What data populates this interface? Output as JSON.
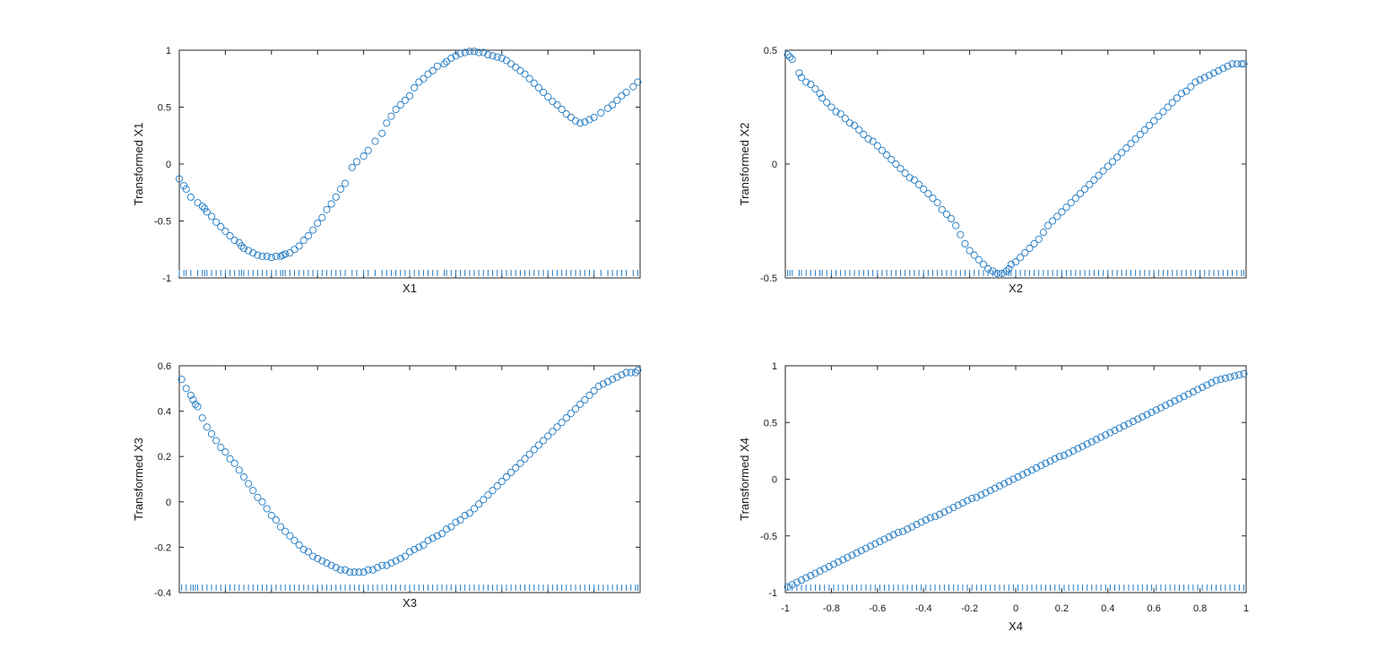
{
  "colors": {
    "marker": "#1f7ac4",
    "rug": "#1f7ac4",
    "axis": "#262626",
    "background": "#ffffff"
  },
  "chart_data": [
    {
      "type": "scatter",
      "title": "",
      "xlabel": "X1",
      "ylabel": "Transformed X1",
      "xlim": [
        -1,
        1
      ],
      "ylim": [
        -1,
        1
      ],
      "yticks": [
        -1,
        -0.5,
        0,
        0.5,
        1
      ],
      "ytick_labels": [
        "-1",
        "-0.5",
        "0",
        "0.5",
        "1"
      ],
      "xticks": [
        -1,
        -0.8,
        -0.6,
        -0.4,
        -0.2,
        0,
        0.2,
        0.4,
        0.6,
        0.8,
        1
      ],
      "xtick_labels": [],
      "grid": false,
      "marker": "open-circle",
      "rug": true,
      "series": [
        {
          "x": [
            -1.0,
            -0.98,
            -0.97,
            -0.95,
            -0.92,
            -0.9,
            -0.89,
            -0.88,
            -0.86,
            -0.84,
            -0.82,
            -0.8,
            -0.78,
            -0.76,
            -0.74,
            -0.73,
            -0.72,
            -0.7,
            -0.68,
            -0.66,
            -0.64,
            -0.62,
            -0.6,
            -0.58,
            -0.56,
            -0.55,
            -0.54,
            -0.52,
            -0.5,
            -0.48,
            -0.46,
            -0.44,
            -0.42,
            -0.4,
            -0.38,
            -0.36,
            -0.34,
            -0.32,
            -0.3,
            -0.28,
            -0.25,
            -0.23,
            -0.2,
            -0.18,
            -0.15,
            -0.12,
            -0.1,
            -0.08,
            -0.06,
            -0.04,
            -0.02,
            0.0,
            0.02,
            0.04,
            0.06,
            0.08,
            0.1,
            0.12,
            0.15,
            0.16,
            0.18,
            0.2,
            0.22,
            0.24,
            0.26,
            0.28,
            0.3,
            0.32,
            0.34,
            0.36,
            0.38,
            0.4,
            0.42,
            0.44,
            0.46,
            0.48,
            0.5,
            0.52,
            0.54,
            0.56,
            0.58,
            0.6,
            0.62,
            0.64,
            0.66,
            0.68,
            0.7,
            0.72,
            0.74,
            0.76,
            0.78,
            0.8,
            0.83,
            0.86,
            0.88,
            0.9,
            0.92,
            0.94,
            0.97,
            0.99
          ],
          "y": [
            -0.13,
            -0.19,
            -0.22,
            -0.29,
            -0.34,
            -0.37,
            -0.39,
            -0.42,
            -0.46,
            -0.51,
            -0.55,
            -0.59,
            -0.63,
            -0.67,
            -0.69,
            -0.72,
            -0.74,
            -0.76,
            -0.78,
            -0.8,
            -0.81,
            -0.81,
            -0.82,
            -0.81,
            -0.81,
            -0.8,
            -0.79,
            -0.78,
            -0.75,
            -0.72,
            -0.67,
            -0.63,
            -0.58,
            -0.52,
            -0.47,
            -0.4,
            -0.35,
            -0.29,
            -0.22,
            -0.17,
            -0.03,
            0.02,
            0.07,
            0.12,
            0.2,
            0.27,
            0.36,
            0.42,
            0.48,
            0.52,
            0.56,
            0.6,
            0.67,
            0.72,
            0.75,
            0.79,
            0.82,
            0.86,
            0.88,
            0.9,
            0.93,
            0.95,
            0.97,
            0.98,
            0.99,
            0.99,
            0.98,
            0.98,
            0.96,
            0.95,
            0.94,
            0.93,
            0.91,
            0.88,
            0.85,
            0.82,
            0.79,
            0.75,
            0.71,
            0.67,
            0.63,
            0.59,
            0.55,
            0.52,
            0.48,
            0.44,
            0.41,
            0.38,
            0.36,
            0.37,
            0.39,
            0.41,
            0.45,
            0.49,
            0.52,
            0.56,
            0.6,
            0.63,
            0.68,
            0.72
          ]
        }
      ]
    },
    {
      "type": "scatter",
      "title": "",
      "xlabel": "X2",
      "ylabel": "Transformed X2",
      "xlim": [
        -1,
        1
      ],
      "ylim": [
        -0.5,
        0.5
      ],
      "yticks": [
        -0.5,
        0,
        0.5
      ],
      "ytick_labels": [
        "-0.5",
        "0",
        "0.5"
      ],
      "xticks": [
        -1,
        -0.8,
        -0.6,
        -0.4,
        -0.2,
        0,
        0.2,
        0.4,
        0.6,
        0.8,
        1
      ],
      "xtick_labels": [],
      "grid": false,
      "marker": "open-circle",
      "rug": true,
      "series": [
        {
          "x": [
            -0.99,
            -0.98,
            -0.97,
            -0.94,
            -0.93,
            -0.91,
            -0.89,
            -0.87,
            -0.85,
            -0.84,
            -0.82,
            -0.8,
            -0.78,
            -0.76,
            -0.74,
            -0.72,
            -0.7,
            -0.68,
            -0.66,
            -0.64,
            -0.62,
            -0.6,
            -0.58,
            -0.56,
            -0.54,
            -0.52,
            -0.5,
            -0.48,
            -0.46,
            -0.44,
            -0.42,
            -0.4,
            -0.38,
            -0.36,
            -0.34,
            -0.32,
            -0.3,
            -0.28,
            -0.26,
            -0.24,
            -0.22,
            -0.2,
            -0.18,
            -0.16,
            -0.14,
            -0.12,
            -0.1,
            -0.08,
            -0.06,
            -0.04,
            -0.03,
            -0.02,
            0.0,
            0.02,
            0.04,
            0.06,
            0.08,
            0.1,
            0.12,
            0.14,
            0.16,
            0.18,
            0.2,
            0.22,
            0.24,
            0.26,
            0.28,
            0.3,
            0.32,
            0.34,
            0.36,
            0.38,
            0.4,
            0.42,
            0.44,
            0.46,
            0.48,
            0.5,
            0.52,
            0.54,
            0.56,
            0.58,
            0.6,
            0.62,
            0.64,
            0.66,
            0.68,
            0.7,
            0.72,
            0.74,
            0.76,
            0.78,
            0.8,
            0.82,
            0.84,
            0.86,
            0.88,
            0.9,
            0.92,
            0.94,
            0.96,
            0.98,
            0.99
          ],
          "y": [
            0.48,
            0.47,
            0.46,
            0.4,
            0.38,
            0.36,
            0.35,
            0.33,
            0.31,
            0.29,
            0.27,
            0.25,
            0.23,
            0.22,
            0.2,
            0.18,
            0.17,
            0.15,
            0.13,
            0.11,
            0.1,
            0.08,
            0.06,
            0.04,
            0.02,
            0.0,
            -0.02,
            -0.04,
            -0.06,
            -0.07,
            -0.09,
            -0.11,
            -0.13,
            -0.15,
            -0.17,
            -0.2,
            -0.22,
            -0.24,
            -0.27,
            -0.31,
            -0.35,
            -0.38,
            -0.4,
            -0.42,
            -0.44,
            -0.46,
            -0.47,
            -0.48,
            -0.48,
            -0.47,
            -0.46,
            -0.44,
            -0.43,
            -0.41,
            -0.39,
            -0.37,
            -0.35,
            -0.33,
            -0.3,
            -0.27,
            -0.25,
            -0.23,
            -0.21,
            -0.19,
            -0.17,
            -0.15,
            -0.13,
            -0.11,
            -0.09,
            -0.07,
            -0.05,
            -0.03,
            -0.01,
            0.01,
            0.03,
            0.05,
            0.07,
            0.09,
            0.11,
            0.13,
            0.15,
            0.17,
            0.19,
            0.21,
            0.23,
            0.25,
            0.27,
            0.29,
            0.31,
            0.32,
            0.34,
            0.36,
            0.37,
            0.38,
            0.39,
            0.4,
            0.41,
            0.42,
            0.43,
            0.44,
            0.44,
            0.44,
            0.44
          ]
        }
      ]
    },
    {
      "type": "scatter",
      "title": "",
      "xlabel": "X3",
      "ylabel": "Transformed X3",
      "xlim": [
        -1,
        1
      ],
      "ylim": [
        -0.4,
        0.6
      ],
      "yticks": [
        -0.4,
        -0.2,
        0,
        0.2,
        0.4,
        0.6
      ],
      "ytick_labels": [
        "-0.4",
        "-0.2",
        "0",
        "0.2",
        "0.4",
        "0.6"
      ],
      "xticks": [
        -1,
        -0.8,
        -0.6,
        -0.4,
        -0.2,
        0,
        0.2,
        0.4,
        0.6,
        0.8,
        1
      ],
      "xtick_labels": [],
      "grid": false,
      "marker": "open-circle",
      "rug": true,
      "series": [
        {
          "x": [
            -0.99,
            -0.97,
            -0.95,
            -0.94,
            -0.93,
            -0.92,
            -0.9,
            -0.88,
            -0.86,
            -0.84,
            -0.82,
            -0.8,
            -0.78,
            -0.76,
            -0.74,
            -0.72,
            -0.7,
            -0.68,
            -0.66,
            -0.64,
            -0.62,
            -0.6,
            -0.58,
            -0.56,
            -0.54,
            -0.52,
            -0.5,
            -0.48,
            -0.46,
            -0.44,
            -0.42,
            -0.4,
            -0.38,
            -0.36,
            -0.34,
            -0.32,
            -0.3,
            -0.28,
            -0.26,
            -0.24,
            -0.22,
            -0.2,
            -0.18,
            -0.16,
            -0.14,
            -0.12,
            -0.1,
            -0.08,
            -0.06,
            -0.04,
            -0.02,
            0.0,
            0.02,
            0.04,
            0.06,
            0.08,
            0.1,
            0.12,
            0.14,
            0.16,
            0.18,
            0.2,
            0.22,
            0.24,
            0.26,
            0.28,
            0.3,
            0.32,
            0.34,
            0.36,
            0.38,
            0.4,
            0.42,
            0.44,
            0.46,
            0.48,
            0.5,
            0.52,
            0.54,
            0.56,
            0.58,
            0.6,
            0.62,
            0.64,
            0.66,
            0.68,
            0.7,
            0.72,
            0.74,
            0.76,
            0.78,
            0.8,
            0.82,
            0.84,
            0.86,
            0.88,
            0.9,
            0.92,
            0.94,
            0.96,
            0.98,
            0.99
          ],
          "y": [
            0.54,
            0.5,
            0.47,
            0.45,
            0.43,
            0.42,
            0.37,
            0.33,
            0.3,
            0.27,
            0.24,
            0.22,
            0.19,
            0.17,
            0.14,
            0.11,
            0.08,
            0.05,
            0.02,
            0.0,
            -0.03,
            -0.06,
            -0.08,
            -0.11,
            -0.13,
            -0.15,
            -0.17,
            -0.19,
            -0.21,
            -0.22,
            -0.24,
            -0.25,
            -0.26,
            -0.27,
            -0.28,
            -0.29,
            -0.3,
            -0.3,
            -0.31,
            -0.31,
            -0.31,
            -0.31,
            -0.3,
            -0.3,
            -0.29,
            -0.28,
            -0.28,
            -0.27,
            -0.26,
            -0.25,
            -0.24,
            -0.22,
            -0.21,
            -0.2,
            -0.19,
            -0.17,
            -0.16,
            -0.15,
            -0.14,
            -0.12,
            -0.11,
            -0.09,
            -0.08,
            -0.06,
            -0.05,
            -0.03,
            -0.01,
            0.01,
            0.03,
            0.05,
            0.07,
            0.09,
            0.11,
            0.13,
            0.15,
            0.17,
            0.19,
            0.21,
            0.23,
            0.25,
            0.27,
            0.29,
            0.31,
            0.33,
            0.35,
            0.37,
            0.39,
            0.41,
            0.43,
            0.45,
            0.47,
            0.49,
            0.51,
            0.52,
            0.53,
            0.54,
            0.55,
            0.56,
            0.57,
            0.57,
            0.57,
            0.58
          ]
        }
      ]
    },
    {
      "type": "scatter",
      "title": "",
      "xlabel": "X4",
      "ylabel": "Transformed X4",
      "xlim": [
        -1,
        1
      ],
      "ylim": [
        -1,
        1
      ],
      "yticks": [
        -1,
        -0.5,
        0,
        0.5,
        1
      ],
      "ytick_labels": [
        "-1",
        "-0.5",
        "0",
        "0.5",
        "1"
      ],
      "xticks": [
        -1,
        -0.8,
        -0.6,
        -0.4,
        -0.2,
        0,
        0.2,
        0.4,
        0.6,
        0.8,
        1
      ],
      "xtick_labels": [
        "-1",
        "-0.8",
        "-0.6",
        "-0.4",
        "-0.2",
        "0",
        "0.2",
        "0.4",
        "0.6",
        "0.8",
        "1"
      ],
      "grid": false,
      "marker": "open-circle",
      "rug": true,
      "series": [
        {
          "x": [
            -0.99,
            -0.97,
            -0.95,
            -0.93,
            -0.91,
            -0.89,
            -0.87,
            -0.85,
            -0.83,
            -0.81,
            -0.79,
            -0.77,
            -0.75,
            -0.73,
            -0.71,
            -0.69,
            -0.67,
            -0.65,
            -0.63,
            -0.61,
            -0.59,
            -0.57,
            -0.55,
            -0.53,
            -0.51,
            -0.49,
            -0.47,
            -0.45,
            -0.43,
            -0.41,
            -0.39,
            -0.37,
            -0.35,
            -0.33,
            -0.31,
            -0.29,
            -0.27,
            -0.25,
            -0.23,
            -0.21,
            -0.19,
            -0.17,
            -0.15,
            -0.13,
            -0.11,
            -0.09,
            -0.07,
            -0.05,
            -0.03,
            -0.01,
            0.01,
            0.03,
            0.05,
            0.07,
            0.09,
            0.11,
            0.13,
            0.15,
            0.17,
            0.19,
            0.21,
            0.23,
            0.25,
            0.27,
            0.29,
            0.31,
            0.33,
            0.35,
            0.37,
            0.39,
            0.41,
            0.43,
            0.45,
            0.47,
            0.49,
            0.51,
            0.53,
            0.55,
            0.57,
            0.59,
            0.61,
            0.63,
            0.65,
            0.67,
            0.69,
            0.71,
            0.73,
            0.75,
            0.77,
            0.79,
            0.81,
            0.83,
            0.85,
            0.87,
            0.89,
            0.91,
            0.93,
            0.95,
            0.97,
            0.99
          ],
          "y": [
            -0.95,
            -0.93,
            -0.91,
            -0.89,
            -0.87,
            -0.85,
            -0.83,
            -0.81,
            -0.79,
            -0.77,
            -0.75,
            -0.73,
            -0.71,
            -0.69,
            -0.67,
            -0.65,
            -0.63,
            -0.61,
            -0.59,
            -0.57,
            -0.55,
            -0.53,
            -0.51,
            -0.49,
            -0.47,
            -0.46,
            -0.44,
            -0.42,
            -0.4,
            -0.38,
            -0.36,
            -0.34,
            -0.33,
            -0.31,
            -0.29,
            -0.27,
            -0.25,
            -0.23,
            -0.21,
            -0.19,
            -0.17,
            -0.16,
            -0.14,
            -0.12,
            -0.1,
            -0.08,
            -0.06,
            -0.04,
            -0.02,
            0.0,
            0.02,
            0.04,
            0.06,
            0.08,
            0.1,
            0.12,
            0.14,
            0.16,
            0.18,
            0.2,
            0.21,
            0.23,
            0.25,
            0.27,
            0.29,
            0.31,
            0.33,
            0.35,
            0.37,
            0.39,
            0.41,
            0.43,
            0.45,
            0.47,
            0.49,
            0.51,
            0.53,
            0.55,
            0.57,
            0.59,
            0.61,
            0.63,
            0.65,
            0.67,
            0.69,
            0.71,
            0.73,
            0.75,
            0.77,
            0.79,
            0.81,
            0.83,
            0.85,
            0.87,
            0.88,
            0.89,
            0.9,
            0.91,
            0.92,
            0.93
          ]
        }
      ]
    }
  ]
}
